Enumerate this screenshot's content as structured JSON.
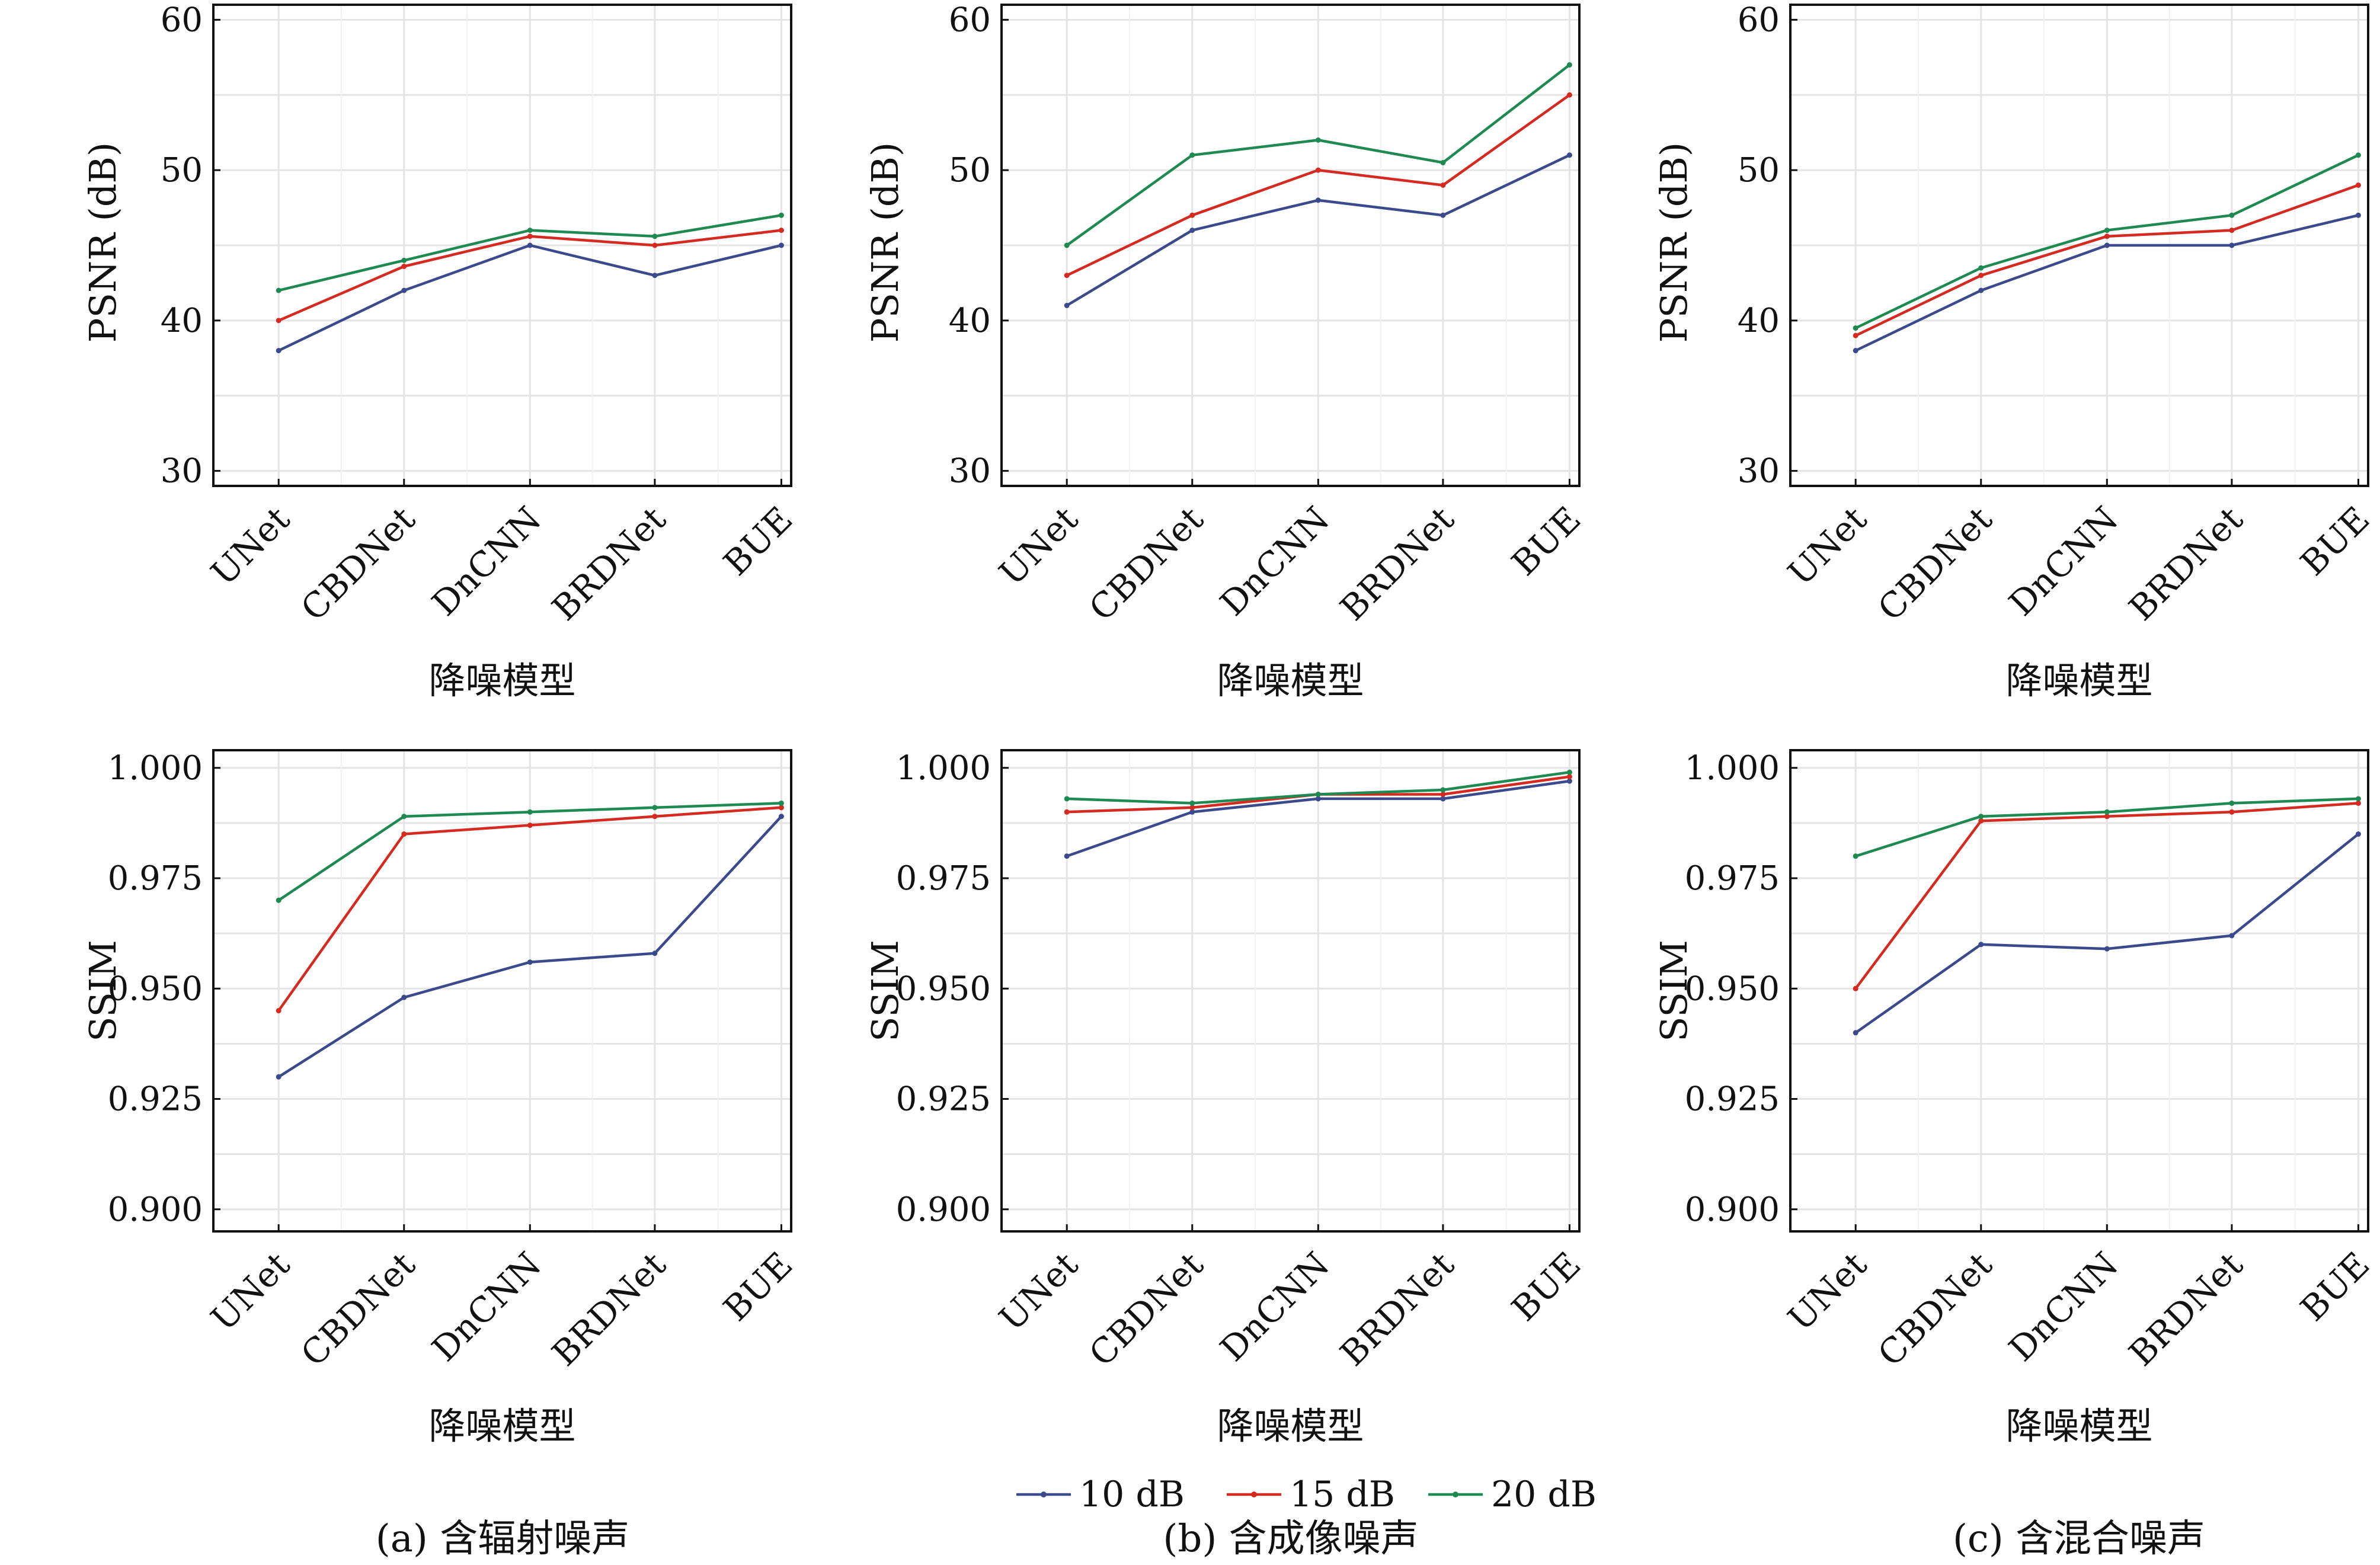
{
  "colors": {
    "10 dB": "#3a4a8c",
    "15 dB": "#d42a20",
    "20 dB": "#1e8a52",
    "grid": "#e4e4e4",
    "axis": "#111111"
  },
  "legend": [
    "10 dB",
    "15 dB",
    "20 dB"
  ],
  "captions": [
    "(a) 含辐射噪声",
    "(b) 含成像噪声",
    "(c) 含混合噪声"
  ],
  "chart_data": [
    {
      "type": "line",
      "panel": "a-top",
      "xlabel": "降噪模型",
      "ylabel": "PSNR (dB)",
      "categories": [
        "UNet",
        "CBDNet",
        "DnCNN",
        "BRDNet",
        "BUE"
      ],
      "ylim": [
        29,
        61
      ],
      "yticks": [
        "30",
        "40",
        "50",
        "60"
      ],
      "yticks_values": [
        30,
        40,
        50,
        60
      ],
      "grid": true,
      "series": [
        {
          "name": "10 dB",
          "values": [
            38,
            42,
            45,
            43,
            45
          ]
        },
        {
          "name": "15 dB",
          "values": [
            40,
            43.6,
            45.6,
            45,
            46
          ]
        },
        {
          "name": "20 dB",
          "values": [
            42,
            44,
            46,
            45.6,
            47
          ]
        }
      ]
    },
    {
      "type": "line",
      "panel": "b-top",
      "xlabel": "降噪模型",
      "ylabel": "PSNR (dB)",
      "categories": [
        "UNet",
        "CBDNet",
        "DnCNN",
        "BRDNet",
        "BUE"
      ],
      "ylim": [
        29,
        61
      ],
      "yticks": [
        "30",
        "40",
        "50",
        "60"
      ],
      "yticks_values": [
        30,
        40,
        50,
        60
      ],
      "grid": true,
      "series": [
        {
          "name": "10 dB",
          "values": [
            41,
            46,
            48,
            47,
            51
          ]
        },
        {
          "name": "15 dB",
          "values": [
            43,
            47,
            50,
            49,
            55
          ]
        },
        {
          "name": "20 dB",
          "values": [
            45,
            51,
            52,
            50.5,
            57
          ]
        }
      ]
    },
    {
      "type": "line",
      "panel": "c-top",
      "xlabel": "降噪模型",
      "ylabel": "PSNR (dB)",
      "categories": [
        "UNet",
        "CBDNet",
        "DnCNN",
        "BRDNet",
        "BUE"
      ],
      "ylim": [
        29,
        61
      ],
      "yticks": [
        "30",
        "40",
        "50",
        "60"
      ],
      "yticks_values": [
        30,
        40,
        50,
        60
      ],
      "grid": true,
      "series": [
        {
          "name": "10 dB",
          "values": [
            38,
            42,
            45,
            45,
            47
          ]
        },
        {
          "name": "15 dB",
          "values": [
            39,
            43,
            45.6,
            46,
            49
          ]
        },
        {
          "name": "20 dB",
          "values": [
            39.5,
            43.5,
            46,
            47,
            51
          ]
        }
      ]
    },
    {
      "type": "line",
      "panel": "a-bottom",
      "xlabel": "降噪模型",
      "ylabel": "SSIM",
      "categories": [
        "UNet",
        "CBDNet",
        "DnCNN",
        "BRDNet",
        "BUE"
      ],
      "ylim": [
        0.895,
        1.004
      ],
      "yticks": [
        "0.900",
        "0.925",
        "0.950",
        "0.975",
        "1.000"
      ],
      "yticks_values": [
        0.9,
        0.925,
        0.95,
        0.975,
        1.0
      ],
      "grid": true,
      "series": [
        {
          "name": "10 dB",
          "values": [
            0.93,
            0.948,
            0.956,
            0.958,
            0.989
          ]
        },
        {
          "name": "15 dB",
          "values": [
            0.945,
            0.985,
            0.987,
            0.989,
            0.991
          ]
        },
        {
          "name": "20 dB",
          "values": [
            0.97,
            0.989,
            0.99,
            0.991,
            0.992
          ]
        }
      ]
    },
    {
      "type": "line",
      "panel": "b-bottom",
      "xlabel": "降噪模型",
      "ylabel": "SSIM",
      "categories": [
        "UNet",
        "CBDNet",
        "DnCNN",
        "BRDNet",
        "BUE"
      ],
      "ylim": [
        0.895,
        1.004
      ],
      "yticks": [
        "0.900",
        "0.925",
        "0.950",
        "0.975",
        "1.000"
      ],
      "yticks_values": [
        0.9,
        0.925,
        0.95,
        0.975,
        1.0
      ],
      "grid": true,
      "series": [
        {
          "name": "10 dB",
          "values": [
            0.98,
            0.99,
            0.993,
            0.993,
            0.997
          ]
        },
        {
          "name": "15 dB",
          "values": [
            0.99,
            0.991,
            0.994,
            0.994,
            0.998
          ]
        },
        {
          "name": "20 dB",
          "values": [
            0.993,
            0.992,
            0.994,
            0.995,
            0.999
          ]
        }
      ]
    },
    {
      "type": "line",
      "panel": "c-bottom",
      "xlabel": "降噪模型",
      "ylabel": "SSIM",
      "categories": [
        "UNet",
        "CBDNet",
        "DnCNN",
        "BRDNet",
        "BUE"
      ],
      "ylim": [
        0.895,
        1.004
      ],
      "yticks": [
        "0.900",
        "0.925",
        "0.950",
        "0.975",
        "1.000"
      ],
      "yticks_values": [
        0.9,
        0.925,
        0.95,
        0.975,
        1.0
      ],
      "grid": true,
      "series": [
        {
          "name": "10 dB",
          "values": [
            0.94,
            0.96,
            0.959,
            0.962,
            0.985
          ]
        },
        {
          "name": "15 dB",
          "values": [
            0.95,
            0.988,
            0.989,
            0.99,
            0.992
          ]
        },
        {
          "name": "20 dB",
          "values": [
            0.98,
            0.989,
            0.99,
            0.992,
            0.993
          ]
        }
      ]
    }
  ]
}
